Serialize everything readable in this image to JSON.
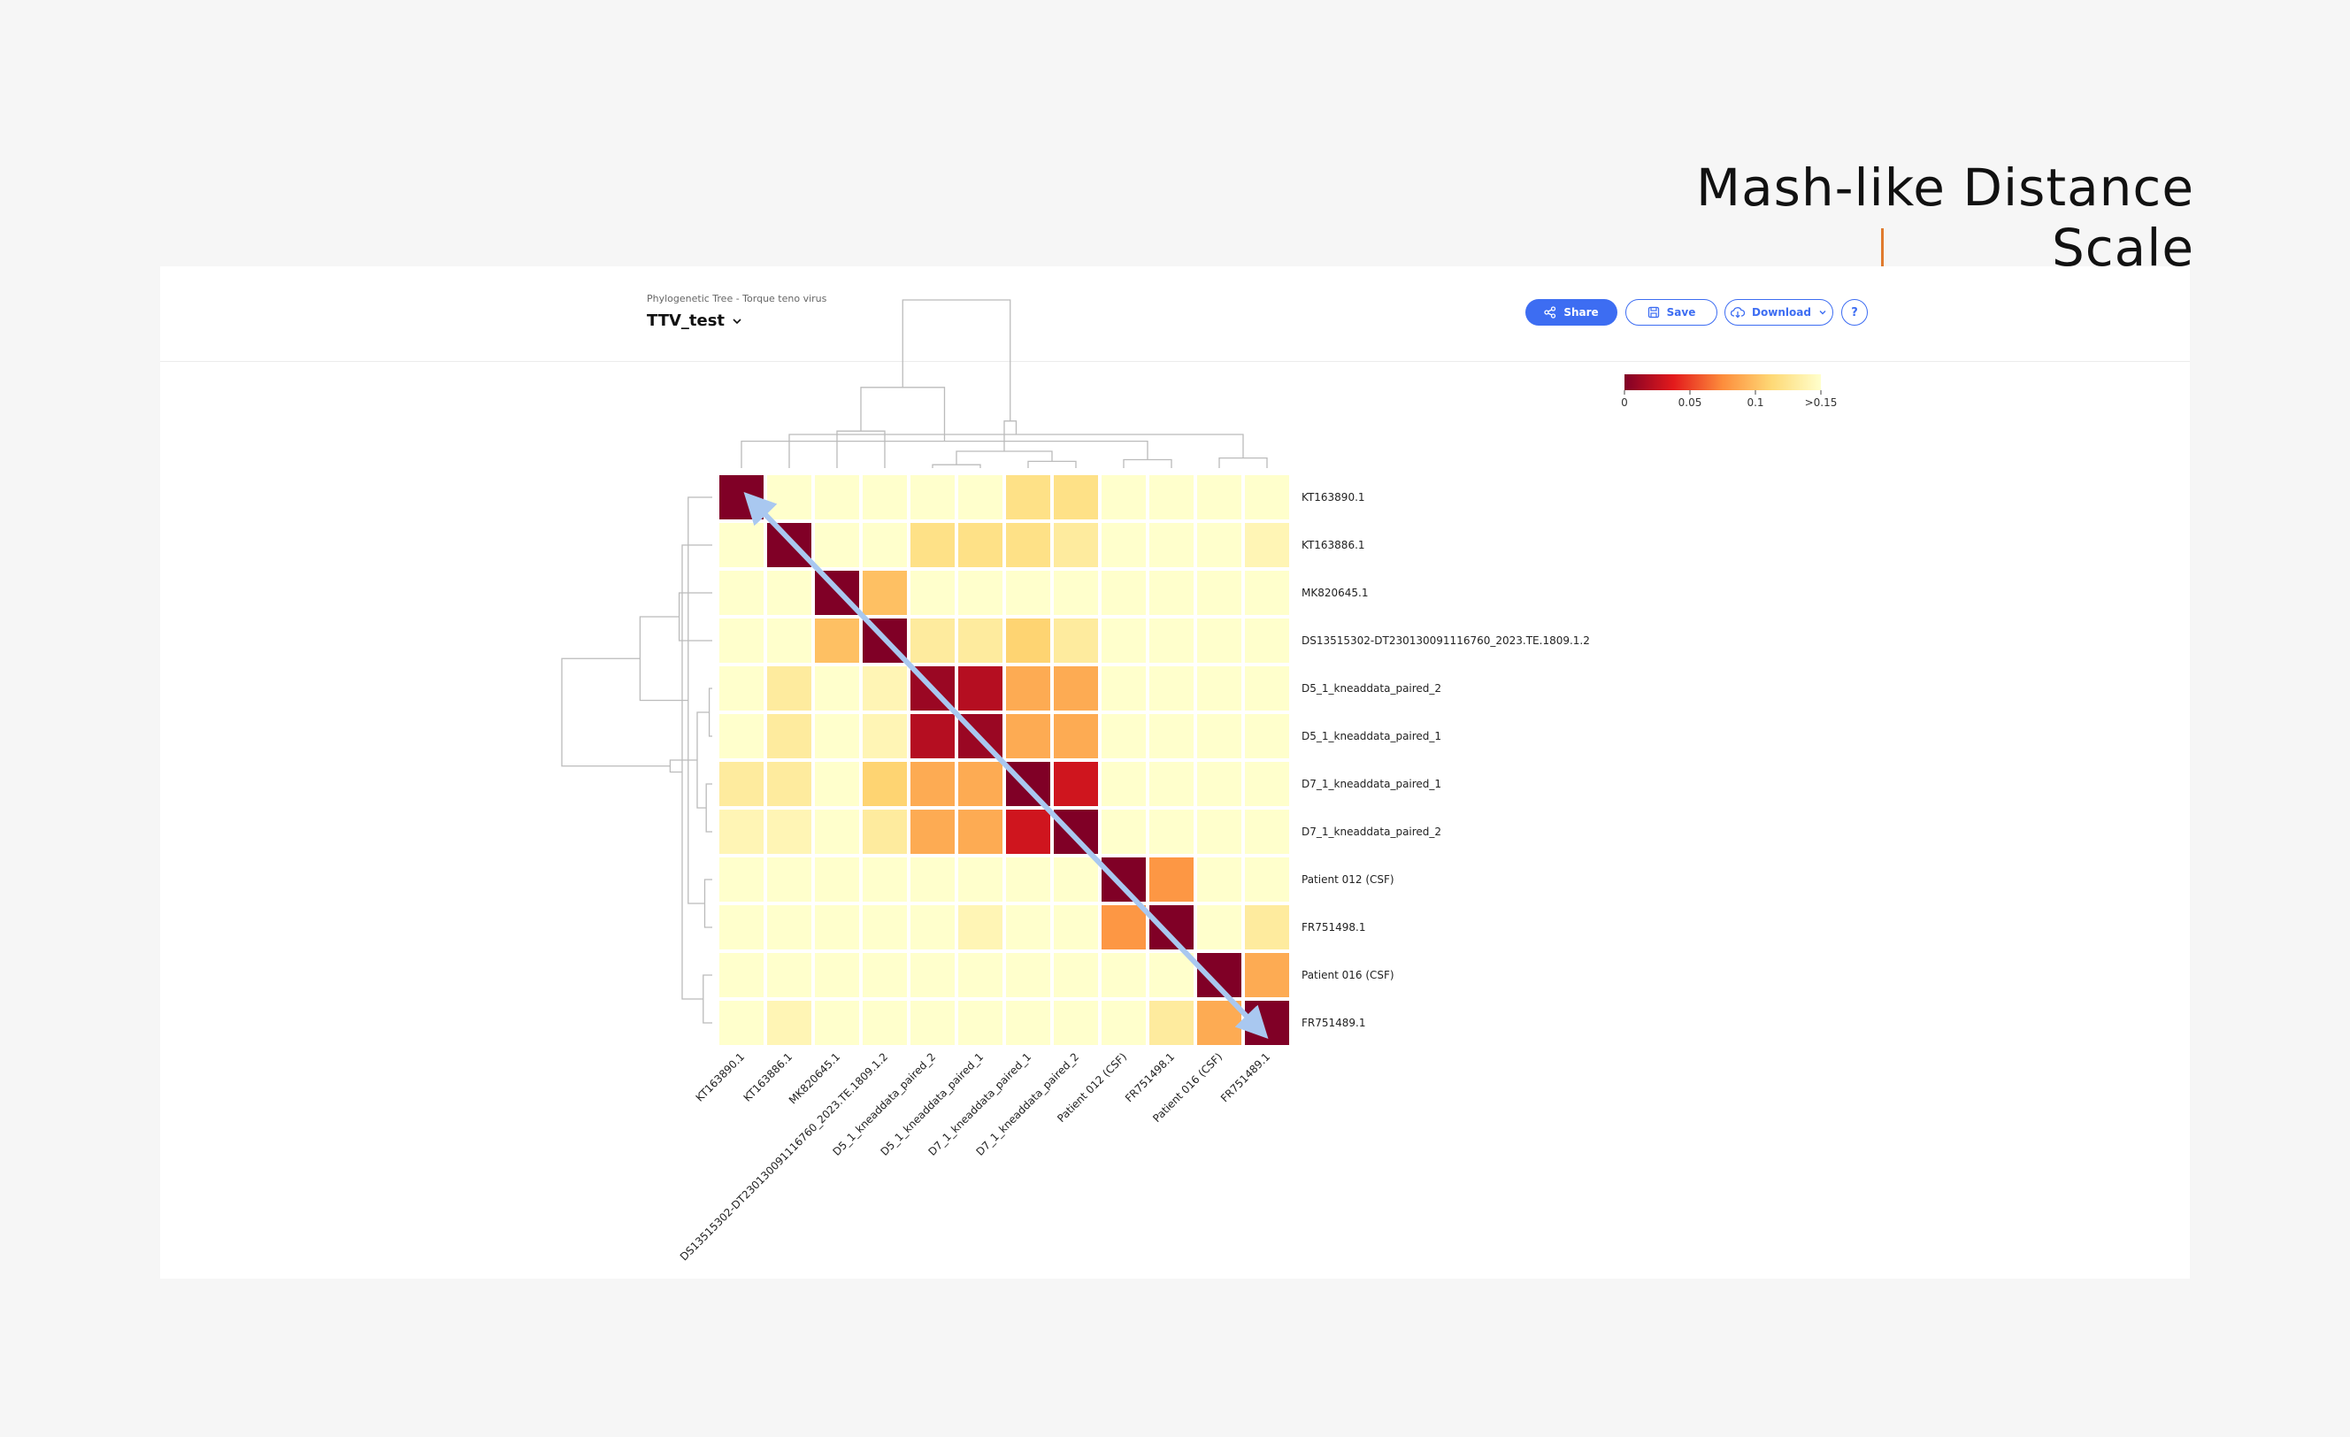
{
  "annotation": {
    "title": "Mash-like Distance Scale"
  },
  "header": {
    "breadcrumb": "Phylogenetic Tree - Torque teno virus",
    "title": "TTV_test",
    "share_label": "Share",
    "save_label": "Save",
    "download_label": "Download",
    "help_label": "?"
  },
  "colors": {
    "accent": "#3d6df2",
    "callout": "#e07b2e",
    "arrow": "#a9c8f0"
  },
  "chart_data": {
    "type": "heatmap",
    "samples": [
      "KT163890.1",
      "KT163886.1",
      "MK820645.1",
      "DS13515302-DT230130091116760_2023.TE.1809.1.2",
      "D5_1_kneaddata_paired_2",
      "D5_1_kneaddata_paired_1",
      "D7_1_kneaddata_paired_1",
      "D7_1_kneaddata_paired_2",
      "Patient 012 (CSF)",
      "FR751498.1",
      "Patient 016 (CSF)",
      "FR751489.1"
    ],
    "values": [
      [
        0.0,
        0.15,
        0.15,
        0.15,
        0.15,
        0.15,
        0.12,
        0.12,
        0.15,
        0.15,
        0.15,
        0.15
      ],
      [
        0.15,
        0.0,
        0.15,
        0.15,
        0.12,
        0.12,
        0.12,
        0.13,
        0.15,
        0.15,
        0.15,
        0.14
      ],
      [
        0.15,
        0.15,
        0.0,
        0.1,
        0.15,
        0.15,
        0.15,
        0.15,
        0.15,
        0.15,
        0.15,
        0.15
      ],
      [
        0.15,
        0.15,
        0.1,
        0.0,
        0.13,
        0.13,
        0.11,
        0.13,
        0.15,
        0.15,
        0.15,
        0.15
      ],
      [
        0.15,
        0.13,
        0.15,
        0.14,
        0.01,
        0.02,
        0.09,
        0.09,
        0.15,
        0.15,
        0.15,
        0.15
      ],
      [
        0.15,
        0.13,
        0.15,
        0.14,
        0.02,
        0.01,
        0.09,
        0.09,
        0.15,
        0.15,
        0.15,
        0.15
      ],
      [
        0.13,
        0.13,
        0.15,
        0.11,
        0.09,
        0.09,
        0.0,
        0.03,
        0.15,
        0.15,
        0.15,
        0.15
      ],
      [
        0.14,
        0.14,
        0.15,
        0.13,
        0.09,
        0.09,
        0.03,
        0.0,
        0.15,
        0.15,
        0.15,
        0.15
      ],
      [
        0.15,
        0.15,
        0.15,
        0.15,
        0.15,
        0.15,
        0.15,
        0.15,
        0.0,
        0.08,
        0.15,
        0.15
      ],
      [
        0.15,
        0.15,
        0.15,
        0.15,
        0.15,
        0.14,
        0.15,
        0.15,
        0.08,
        0.0,
        0.15,
        0.13
      ],
      [
        0.15,
        0.15,
        0.15,
        0.15,
        0.15,
        0.15,
        0.15,
        0.15,
        0.15,
        0.15,
        0.0,
        0.09
      ],
      [
        0.15,
        0.14,
        0.15,
        0.15,
        0.15,
        0.15,
        0.15,
        0.15,
        0.15,
        0.13,
        0.09,
        0.0
      ]
    ],
    "scale": {
      "min": 0,
      "max": 0.15,
      "ticks": [
        "0",
        "0.05",
        "0.1",
        ">0.15"
      ],
      "colors": [
        "#800026",
        "#e31a1c",
        "#fd8d3c",
        "#fed976",
        "#ffffcc"
      ]
    },
    "xlabel": "",
    "ylabel": ""
  }
}
